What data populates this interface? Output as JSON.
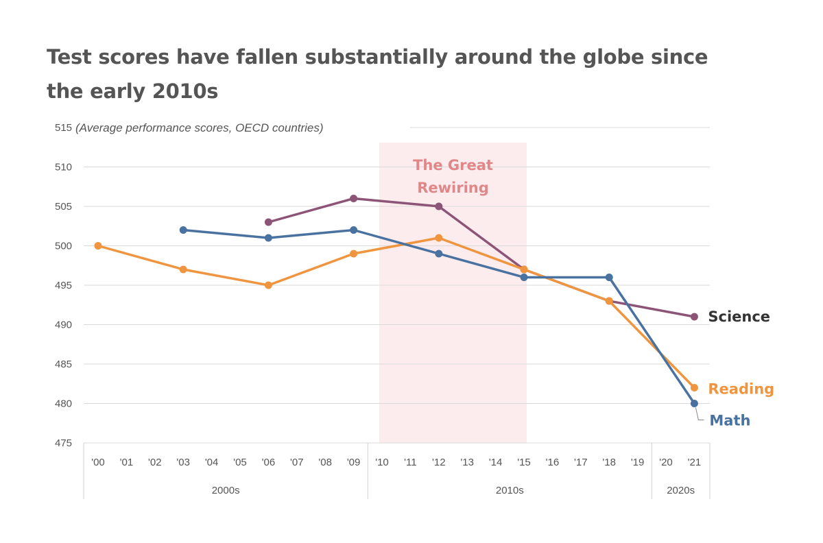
{
  "title_lines": [
    "Test scores have fallen substantially around the globe since",
    "the early 2010s"
  ],
  "chart_data": {
    "type": "line",
    "title": "Test scores have fallen substantially around the globe since the early 2010s",
    "subtitle": "(Average performance scores, OECD countries)",
    "xlabel": "",
    "ylabel": "",
    "ylim": [
      475,
      515
    ],
    "y_ticks": [
      475,
      480,
      485,
      490,
      495,
      500,
      505,
      510,
      515
    ],
    "x_ticks": [
      "'00",
      "'01",
      "'02",
      "'03",
      "'04",
      "'05",
      "'06",
      "'07",
      "'08",
      "'09",
      "'10",
      "'11",
      "'12",
      "'13",
      "'14",
      "'15",
      "'16",
      "'17",
      "'18",
      "'19",
      "'20",
      "'21"
    ],
    "x_groups": [
      {
        "label": "2000s",
        "from": 0,
        "to": 9
      },
      {
        "label": "2010s",
        "from": 10,
        "to": 19
      },
      {
        "label": "2020s",
        "from": 20,
        "to": 21
      }
    ],
    "grid": true,
    "highlight_band": {
      "label_lines": [
        "The Great",
        "Rewiring"
      ],
      "x_from": 10,
      "x_to": 15,
      "color": "#fdeced",
      "label_color": "#e0878a"
    },
    "series": [
      {
        "name": "Science",
        "color": "#8c5476",
        "label_color": "#333333",
        "points": [
          [
            6,
            503
          ],
          [
            9,
            506
          ],
          [
            12,
            505
          ],
          [
            15,
            497
          ],
          [
            18,
            493
          ],
          [
            21,
            491
          ]
        ]
      },
      {
        "name": "Reading",
        "color": "#f0953f",
        "label_color": "#f0953f",
        "points": [
          [
            0,
            500
          ],
          [
            3,
            497
          ],
          [
            6,
            495
          ],
          [
            9,
            499
          ],
          [
            12,
            501
          ],
          [
            15,
            497
          ],
          [
            18,
            493
          ],
          [
            21,
            482
          ]
        ]
      },
      {
        "name": "Math",
        "color": "#4a72a0",
        "label_color": "#4a72a0",
        "points": [
          [
            3,
            502
          ],
          [
            6,
            501
          ],
          [
            9,
            502
          ],
          [
            12,
            499
          ],
          [
            15,
            496
          ],
          [
            18,
            496
          ],
          [
            21,
            480
          ]
        ]
      }
    ]
  }
}
